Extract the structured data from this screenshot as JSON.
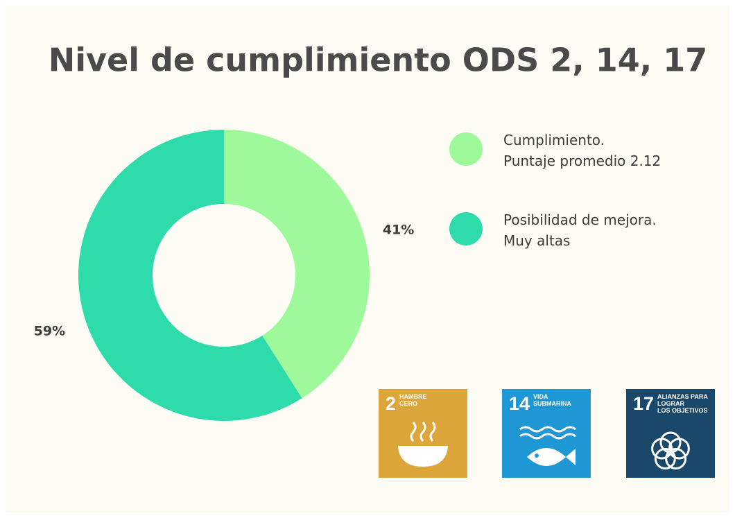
{
  "chart_data": {
    "type": "donut",
    "title": "Nivel de cumplimiento ODS 2, 14, 17",
    "series": [
      {
        "name": "Cumplimiento.\nPuntaje promedio 2.12",
        "color": "#9ef99a"
      },
      {
        "name": "Posibilidad de mejora.\nMuy altas",
        "color": "#2edbab"
      }
    ],
    "values": [
      41,
      59
    ],
    "value_labels": [
      "41%",
      "59%"
    ]
  },
  "icons": [
    {
      "number": "2",
      "label": "HAMBRE\nCERO",
      "color": "#dda63a"
    },
    {
      "number": "14",
      "label": "VIDA\nSUBMARINA",
      "color": "#1f97d4"
    },
    {
      "number": "17",
      "label": "ALIANZAS PARA\nLOGRAR\nLOS OBJETIVOS",
      "color": "#19486a"
    }
  ]
}
